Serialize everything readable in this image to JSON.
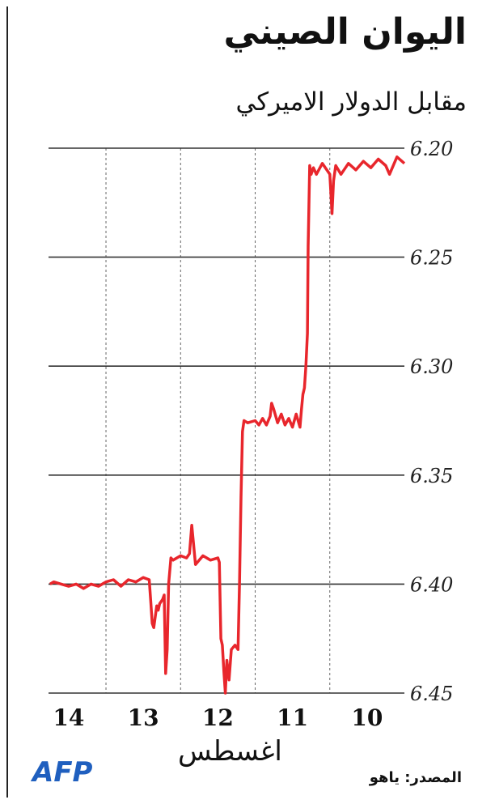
{
  "title": "اليوان الصيني",
  "subtitle": "مقابل الدولار الاميركي",
  "x_axis_title": "اغسطس",
  "source": "المصدر: ياهو",
  "logo_text": "AFP",
  "colors": {
    "line": "#e8262c",
    "logo": "#1f5fbf",
    "grid": "#333333",
    "vgrid": "#666666"
  },
  "chart_data": {
    "type": "line",
    "title": "اليوان الصيني",
    "subtitle": "مقابل الدولار الاميركي",
    "xlabel": "اغسطس",
    "ylabel": "",
    "y_axis_side": "right",
    "y_inverted": true,
    "ylim": [
      6.2,
      6.45
    ],
    "yticks": [
      6.2,
      6.25,
      6.3,
      6.35,
      6.4,
      6.45
    ],
    "ytick_labels": [
      "6.20",
      "6.25",
      "6.30",
      "6.35",
      "6.40",
      "6.45"
    ],
    "x_direction": "right-to-left",
    "xlim": [
      14.27,
      9.5
    ],
    "xticks": [
      14,
      13,
      12,
      11,
      10
    ],
    "xtick_labels": [
      "14",
      "13",
      "12",
      "11",
      "10"
    ],
    "day_boundaries": [
      13.5,
      12.5,
      11.5,
      10.5
    ],
    "grid": "horizontal at y ticks, dashed vertical at day boundaries",
    "series": [
      {
        "values": [
          [
            9.5,
            6.207
          ],
          [
            9.6,
            6.204
          ],
          [
            9.7,
            6.212
          ],
          [
            9.75,
            6.208
          ],
          [
            9.85,
            6.205
          ],
          [
            9.95,
            6.209
          ],
          [
            10.05,
            6.206
          ],
          [
            10.15,
            6.21
          ],
          [
            10.25,
            6.207
          ],
          [
            10.35,
            6.212
          ],
          [
            10.42,
            6.208
          ],
          [
            10.45,
            6.215
          ],
          [
            10.47,
            6.23
          ],
          [
            10.49,
            6.218
          ],
          [
            10.5,
            6.212
          ],
          [
            10.6,
            6.207
          ],
          [
            10.68,
            6.212
          ],
          [
            10.72,
            6.209
          ],
          [
            10.75,
            6.212
          ],
          [
            10.77,
            6.208
          ],
          [
            10.79,
            6.245
          ],
          [
            10.8,
            6.285
          ],
          [
            10.82,
            6.3
          ],
          [
            10.84,
            6.31
          ],
          [
            10.86,
            6.313
          ],
          [
            10.88,
            6.32
          ],
          [
            10.9,
            6.328
          ],
          [
            10.95,
            6.322
          ],
          [
            11.0,
            6.328
          ],
          [
            11.05,
            6.324
          ],
          [
            11.1,
            6.327
          ],
          [
            11.15,
            6.322
          ],
          [
            11.2,
            6.326
          ],
          [
            11.25,
            6.32
          ],
          [
            11.28,
            6.317
          ],
          [
            11.3,
            6.323
          ],
          [
            11.35,
            6.327
          ],
          [
            11.4,
            6.324
          ],
          [
            11.45,
            6.327
          ],
          [
            11.5,
            6.325
          ],
          [
            11.6,
            6.326
          ],
          [
            11.65,
            6.325
          ],
          [
            11.67,
            6.33
          ],
          [
            11.69,
            6.36
          ],
          [
            11.71,
            6.4
          ],
          [
            11.73,
            6.43
          ],
          [
            11.77,
            6.428
          ],
          [
            11.82,
            6.43
          ],
          [
            11.85,
            6.444
          ],
          [
            11.88,
            6.435
          ],
          [
            11.9,
            6.45
          ],
          [
            11.92,
            6.44
          ],
          [
            11.94,
            6.428
          ],
          [
            11.96,
            6.425
          ],
          [
            11.98,
            6.39
          ],
          [
            12.0,
            6.388
          ],
          [
            12.1,
            6.389
          ],
          [
            12.2,
            6.387
          ],
          [
            12.3,
            6.391
          ],
          [
            12.32,
            6.384
          ],
          [
            12.35,
            6.373
          ],
          [
            12.38,
            6.386
          ],
          [
            12.42,
            6.388
          ],
          [
            12.5,
            6.387
          ],
          [
            12.6,
            6.389
          ],
          [
            12.63,
            6.388
          ],
          [
            12.66,
            6.4
          ],
          [
            12.68,
            6.43
          ],
          [
            12.7,
            6.441
          ],
          [
            12.72,
            6.405
          ],
          [
            12.74,
            6.407
          ],
          [
            12.78,
            6.409
          ],
          [
            12.8,
            6.412
          ],
          [
            12.82,
            6.41
          ],
          [
            12.86,
            6.42
          ],
          [
            12.88,
            6.418
          ],
          [
            12.9,
            6.408
          ],
          [
            12.92,
            6.398
          ],
          [
            13.0,
            6.397
          ],
          [
            13.1,
            6.399
          ],
          [
            13.2,
            6.398
          ],
          [
            13.3,
            6.401
          ],
          [
            13.4,
            6.398
          ],
          [
            13.5,
            6.399
          ],
          [
            13.6,
            6.401
          ],
          [
            13.7,
            6.4
          ],
          [
            13.8,
            6.402
          ],
          [
            13.9,
            6.4
          ],
          [
            14.0,
            6.401
          ],
          [
            14.1,
            6.4
          ],
          [
            14.2,
            6.399
          ],
          [
            14.25,
            6.4
          ]
        ]
      }
    ]
  }
}
